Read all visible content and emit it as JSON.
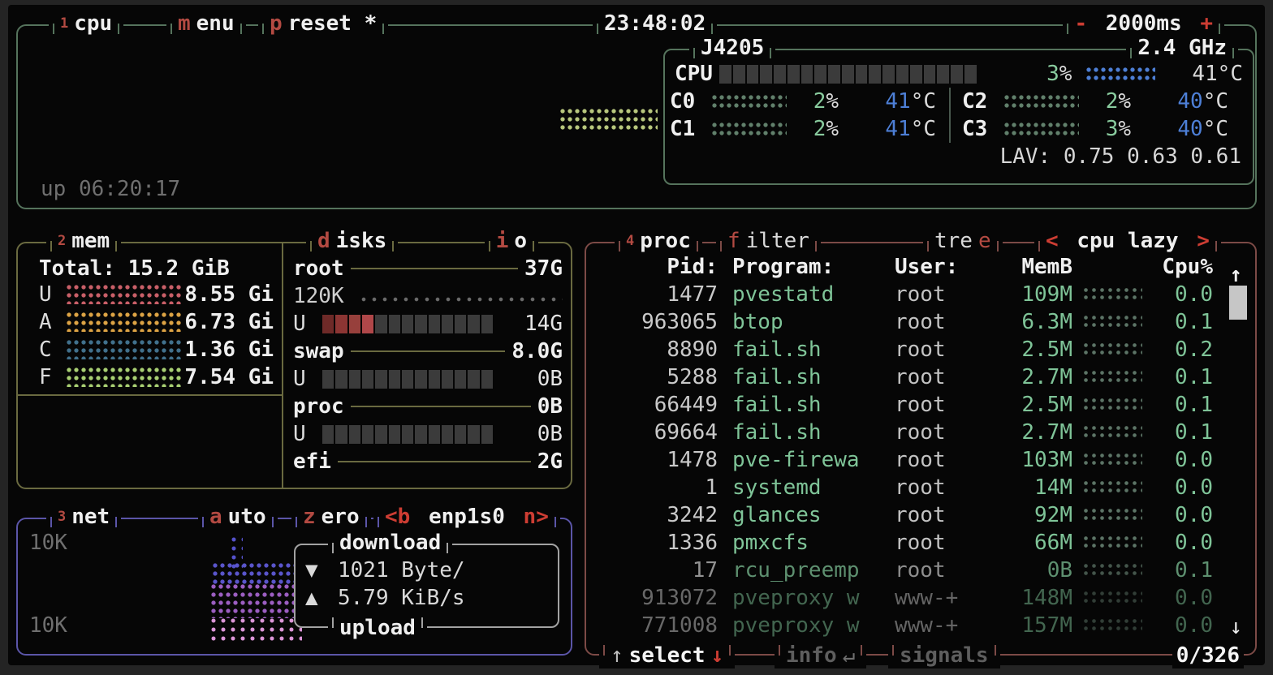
{
  "topbar": {
    "tab_cpu": [
      {
        "t": "1",
        "c": "sup"
      },
      {
        "t": "cpu",
        "c": "wb"
      }
    ],
    "tab_menu": [
      {
        "t": "m",
        "c": "r"
      },
      {
        "t": "enu",
        "c": "wb"
      }
    ],
    "tab_preset": [
      {
        "t": "p",
        "c": "r"
      },
      {
        "t": "reset *",
        "c": "wb"
      }
    ],
    "clock": "23:48:02",
    "interval": [
      {
        "t": "- ",
        "c": "rb"
      },
      {
        "t": "2000ms",
        "c": "wb"
      },
      {
        "t": " +",
        "c": "rb"
      }
    ]
  },
  "cpu": {
    "model": "J4205",
    "freq": "2.4 GHz",
    "uptime": "up 06:20:17",
    "total": {
      "label": "CPU",
      "meter": {
        "total": 19,
        "fill": []
      },
      "pct": [
        {
          "t": "3",
          "c": "g"
        },
        {
          "t": "%",
          "c": "w"
        }
      ],
      "temp": [
        {
          "t": "41°C",
          "c": "w"
        }
      ]
    },
    "cores": [
      {
        "name": "C0",
        "pct": [
          {
            "t": "2",
            "c": "g"
          },
          {
            "t": "%",
            "c": "w"
          }
        ],
        "temp": [
          {
            "t": "41",
            "c": "b"
          },
          {
            "t": "°C",
            "c": "w"
          }
        ]
      },
      {
        "name": "C1",
        "pct": [
          {
            "t": "2",
            "c": "g"
          },
          {
            "t": "%",
            "c": "w"
          }
        ],
        "temp": [
          {
            "t": "41",
            "c": "b"
          },
          {
            "t": "°C",
            "c": "w"
          }
        ]
      },
      {
        "name": "C2",
        "pct": [
          {
            "t": "2",
            "c": "g"
          },
          {
            "t": "%",
            "c": "w"
          }
        ],
        "temp": [
          {
            "t": "40",
            "c": "b"
          },
          {
            "t": "°C",
            "c": "w"
          }
        ]
      },
      {
        "name": "C3",
        "pct": [
          {
            "t": "3",
            "c": "g"
          },
          {
            "t": "%",
            "c": "w"
          }
        ],
        "temp": [
          {
            "t": "40",
            "c": "b"
          },
          {
            "t": "°C",
            "c": "w"
          }
        ]
      }
    ],
    "lav": "LAV: 0.75 0.63 0.61"
  },
  "mem": {
    "title": [
      {
        "t": "2",
        "c": "sup"
      },
      {
        "t": "mem",
        "c": "wb"
      }
    ],
    "total": "Total: 15.2 GiB",
    "rows": [
      {
        "key": "U",
        "value": "8.55 Gi",
        "color": "#c95f68"
      },
      {
        "key": "A",
        "value": "6.73 Gi",
        "color": "#dda344"
      },
      {
        "key": "C",
        "value": "1.36 Gi",
        "color": "#41718d"
      },
      {
        "key": "F",
        "value": "7.54 Gi",
        "color": "#a8cf72"
      }
    ]
  },
  "disks": {
    "title": [
      {
        "t": "d",
        "c": "r"
      },
      {
        "t": "isks",
        "c": "wb"
      }
    ],
    "io_title": [
      {
        "t": "i",
        "c": "r"
      },
      {
        "t": "o",
        "c": "wb"
      }
    ],
    "root": {
      "name": "root",
      "size": "37G",
      "io": "120K",
      "used_label": "U",
      "used": "14G",
      "meter": {
        "total": 13,
        "fill": [
          "#6e2a28",
          "#8c3533",
          "#97403c",
          "#b04749"
        ]
      }
    },
    "swap": {
      "name": "swap",
      "size": "8.0G",
      "used_label": "U",
      "used": "0B",
      "meter": {
        "total": 13,
        "fill": []
      }
    },
    "proc": {
      "name": "proc",
      "size": "0B",
      "used_label": "U",
      "used": "0B",
      "meter": {
        "total": 13,
        "fill": []
      }
    },
    "efi": {
      "name": "efi",
      "size": "2G"
    }
  },
  "net": {
    "title": [
      {
        "t": "3",
        "c": "sup"
      },
      {
        "t": "net",
        "c": "wb"
      }
    ],
    "auto": [
      {
        "t": "a",
        "c": "r"
      },
      {
        "t": "uto",
        "c": "wb"
      }
    ],
    "zero": [
      {
        "t": "z",
        "c": "r"
      },
      {
        "t": "ero",
        "c": "wb"
      }
    ],
    "iface": [
      {
        "t": "<b",
        "c": "rb"
      },
      {
        "t": " enp1s0 ",
        "c": "wb"
      },
      {
        "t": "n>",
        "c": "rb"
      }
    ],
    "scale_top": "10K",
    "scale_bottom": "10K",
    "download_label": "download",
    "upload_label": "upload",
    "down_icon": "▼",
    "down_value": "1021 Byte/",
    "up_icon": "▲",
    "up_value": "5.79 KiB/s"
  },
  "proc": {
    "title": [
      {
        "t": "4",
        "c": "sup"
      },
      {
        "t": "proc",
        "c": "wb"
      }
    ],
    "filter": [
      {
        "t": "f",
        "c": "rt"
      },
      {
        "t": "ilter",
        "c": "w"
      }
    ],
    "tree": [
      {
        "t": "tre",
        "c": "w"
      },
      {
        "t": "e",
        "c": "rt"
      }
    ],
    "sort": [
      {
        "t": "< ",
        "c": "rb"
      },
      {
        "t": "cpu lazy",
        "c": "wb"
      },
      {
        "t": " >",
        "c": "rb"
      }
    ],
    "header": {
      "pid": "Pid:",
      "program": "Program:",
      "user": "User:",
      "mem": "MemB",
      "cpu": "Cpu%"
    },
    "sort_up_arrow": "↑",
    "scroll_down_arrow": "↓",
    "rows": [
      {
        "pid": "1477",
        "program": "pvestatd",
        "user": "root",
        "mem": "109M",
        "cpu": "0.0",
        "dim": 0
      },
      {
        "pid": "963065",
        "program": "btop",
        "user": "root",
        "mem": "6.3M",
        "cpu": "0.1",
        "dim": 0
      },
      {
        "pid": "8890",
        "program": "fail.sh",
        "user": "root",
        "mem": "2.5M",
        "cpu": "0.2",
        "dim": 0
      },
      {
        "pid": "5288",
        "program": "fail.sh",
        "user": "root",
        "mem": "2.7M",
        "cpu": "0.1",
        "dim": 0
      },
      {
        "pid": "66449",
        "program": "fail.sh",
        "user": "root",
        "mem": "2.5M",
        "cpu": "0.1",
        "dim": 0
      },
      {
        "pid": "69664",
        "program": "fail.sh",
        "user": "root",
        "mem": "2.7M",
        "cpu": "0.1",
        "dim": 0
      },
      {
        "pid": "1478",
        "program": "pve-firewa",
        "user": "root",
        "mem": "103M",
        "cpu": "0.0",
        "dim": 0
      },
      {
        "pid": "1",
        "program": "systemd",
        "user": "root",
        "mem": "14M",
        "cpu": "0.0",
        "dim": 0
      },
      {
        "pid": "3242",
        "program": "glances",
        "user": "root",
        "mem": "92M",
        "cpu": "0.0",
        "dim": 0
      },
      {
        "pid": "1336",
        "program": "pmxcfs",
        "user": "root",
        "mem": "66M",
        "cpu": "0.0",
        "dim": 0
      },
      {
        "pid": "17",
        "program": "rcu_preemp",
        "user": "root",
        "mem": "0B",
        "cpu": "0.1",
        "dim": 1
      },
      {
        "pid": "913072",
        "program": "pveproxy w",
        "user": "www-+",
        "mem": "148M",
        "cpu": "0.0",
        "dim": 2
      },
      {
        "pid": "771008",
        "program": "pveproxy w",
        "user": "www-+",
        "mem": "157M",
        "cpu": "0.0",
        "dim": 2
      }
    ],
    "footer": {
      "up": "↑",
      "select": "select",
      "down": "↓",
      "info": "info",
      "enter": "↵",
      "signals": "signals",
      "count": "0/326"
    }
  },
  "colors": {
    "accent_red": "#b34a42",
    "bright_red": "#cd3d33",
    "green": "#89cb9e",
    "blue": "#4d7fd6",
    "border_cpu": "#55735c",
    "border_mem": "#6a6a40",
    "border_net": "#5b55a8",
    "border_proc": "#7c4a46"
  }
}
